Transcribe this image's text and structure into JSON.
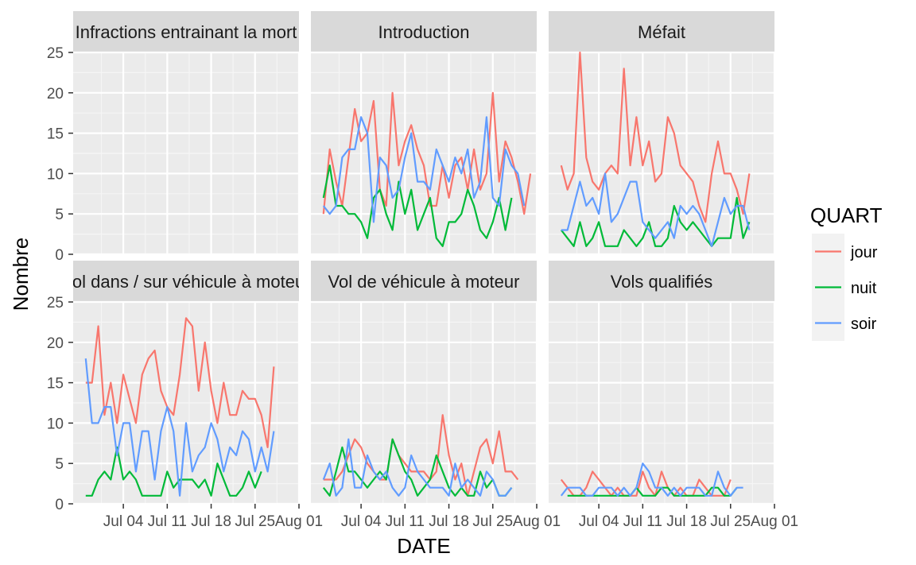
{
  "chart_data": {
    "type": "line",
    "facet_layout": "3 columns x 2 rows, shared axes",
    "xlabel": "DATE",
    "ylabel": "Nombre",
    "x_range": [
      "2017-06-26",
      "2017-08-01"
    ],
    "ylim": [
      0,
      25
    ],
    "x_ticks": [
      {
        "date": "2017-07-04",
        "label": "Jul 04"
      },
      {
        "date": "2017-07-11",
        "label": "Jul 11"
      },
      {
        "date": "2017-07-18",
        "label": "Jul 18"
      },
      {
        "date": "2017-07-25",
        "label": "Jul 25"
      },
      {
        "date": "2017-08-01",
        "label": "Aug 01"
      }
    ],
    "y_ticks": [
      0,
      5,
      10,
      15,
      20,
      25
    ],
    "grid": true,
    "legend": {
      "title": "QUART",
      "placement": "right",
      "entries": [
        {
          "name": "jour",
          "color": "#F8766D"
        },
        {
          "name": "nuit",
          "color": "#00BA38"
        },
        {
          "name": "soir",
          "color": "#619CFF"
        }
      ]
    },
    "panels": [
      {
        "strip": "Infractions entrainant la mort",
        "series": []
      },
      {
        "strip": "Introduction",
        "series": [
          {
            "name": "jour",
            "start": "2017-06-28",
            "values": [
              5,
              13,
              9,
              6,
              12,
              18,
              14,
              15,
              19,
              8,
              6,
              20,
              11,
              14,
              16,
              13,
              11,
              6,
              6,
              11,
              7,
              11,
              12,
              8,
              13,
              8,
              10,
              20,
              9,
              14,
              12,
              9,
              5,
              10
            ]
          },
          {
            "name": "nuit",
            "start": "2017-06-28",
            "values": [
              7,
              11,
              6,
              6,
              5,
              5,
              4,
              2,
              7,
              8,
              5,
              3,
              9,
              5,
              8,
              3,
              5,
              7,
              2,
              1,
              4,
              4,
              5,
              8,
              6,
              3,
              2,
              4,
              7,
              3,
              7
            ]
          },
          {
            "name": "soir",
            "start": "2017-06-28",
            "values": [
              6,
              5,
              6,
              12,
              13,
              13,
              17,
              15,
              4,
              12,
              11,
              7,
              8,
              12,
              15,
              9,
              9,
              8,
              13,
              11,
              9,
              12,
              10,
              13,
              7,
              9,
              17,
              7,
              6,
              13,
              11,
              10,
              6
            ]
          }
        ]
      },
      {
        "strip": "Méfait",
        "series": [
          {
            "name": "jour",
            "start": "2017-06-28",
            "values": [
              11,
              8,
              10,
              25,
              12,
              9,
              8,
              10,
              11,
              10,
              23,
              11,
              17,
              11,
              14,
              9,
              10,
              17,
              15,
              11,
              10,
              9,
              6,
              4,
              10,
              14,
              10,
              10,
              8,
              5,
              10
            ]
          },
          {
            "name": "nuit",
            "start": "2017-06-28",
            "values": [
              3,
              2,
              1,
              4,
              1,
              2,
              4,
              1,
              1,
              1,
              3,
              2,
              1,
              2,
              4,
              1,
              1,
              2,
              6,
              4,
              3,
              4,
              3,
              2,
              1,
              2,
              2,
              2,
              7,
              2,
              4
            ]
          },
          {
            "name": "soir",
            "start": "2017-06-28",
            "values": [
              3,
              3,
              6,
              9,
              6,
              7,
              5,
              10,
              4,
              5,
              7,
              9,
              9,
              4,
              3,
              2,
              3,
              4,
              2,
              6,
              5,
              6,
              5,
              3,
              1,
              4,
              7,
              5,
              6,
              6,
              3
            ]
          }
        ]
      },
      {
        "strip": "Vol dans / sur véhicule à moteur",
        "series": [
          {
            "name": "jour",
            "start": "2017-06-28",
            "values": [
              15,
              15,
              22,
              11,
              15,
              10,
              16,
              13,
              10,
              16,
              18,
              19,
              14,
              12,
              11,
              16,
              23,
              22,
              14,
              20,
              14,
              10,
              15,
              11,
              11,
              14,
              13,
              13,
              11,
              7,
              17
            ]
          },
          {
            "name": "nuit",
            "start": "2017-06-28",
            "values": [
              1,
              1,
              3,
              4,
              3,
              7,
              3,
              4,
              3,
              1,
              1,
              1,
              1,
              4,
              2,
              3,
              3,
              3,
              2,
              3,
              1,
              5,
              3,
              1,
              1,
              2,
              4,
              2,
              4
            ]
          },
          {
            "name": "soir",
            "start": "2017-06-28",
            "values": [
              18,
              10,
              10,
              12,
              12,
              6,
              10,
              10,
              4,
              9,
              9,
              3,
              9,
              12,
              9,
              1,
              10,
              4,
              6,
              7,
              10,
              8,
              4,
              7,
              6,
              9,
              8,
              4,
              7,
              4,
              9
            ]
          }
        ]
      },
      {
        "strip": "Vol de véhicule à moteur",
        "series": [
          {
            "name": "jour",
            "start": "2017-06-28",
            "values": [
              3,
              3,
              3,
              4,
              6,
              8,
              7,
              5,
              4,
              3,
              3,
              8,
              6,
              5,
              4,
              4,
              4,
              3,
              4,
              11,
              6,
              3,
              5,
              1,
              4,
              7,
              8,
              5,
              9,
              4,
              4,
              3
            ]
          },
          {
            "name": "nuit",
            "start": "2017-06-28",
            "values": [
              2,
              1,
              4,
              7,
              4,
              4,
              3,
              2,
              3,
              4,
              3,
              8,
              6,
              4,
              3,
              1,
              2,
              3,
              6,
              4,
              2,
              1,
              2,
              1,
              1,
              4,
              2,
              3,
              1,
              1,
              2
            ]
          },
          {
            "name": "soir",
            "start": "2017-06-28",
            "values": [
              3,
              5,
              1,
              2,
              8,
              2,
              2,
              6,
              4,
              3,
              4,
              2,
              1,
              2,
              6,
              4,
              3,
              2,
              2,
              2,
              1,
              5,
              2,
              3,
              2,
              1,
              4,
              3,
              1,
              1,
              2
            ]
          }
        ]
      },
      {
        "strip": "Vols qualifiés",
        "series": [
          {
            "name": "jour",
            "start": "2017-06-28",
            "values": [
              3,
              2,
              1,
              1,
              2,
              4,
              3,
              2,
              1,
              2,
              1,
              1,
              1,
              4,
              2,
              1,
              4,
              2,
              1,
              2,
              1,
              1,
              3,
              2,
              1,
              1,
              1,
              3
            ]
          },
          {
            "name": "nuit",
            "start": "2017-06-29",
            "values": [
              1,
              1,
              1,
              1,
              1,
              1,
              1,
              1,
              1,
              1,
              1,
              2,
              1,
              1,
              1,
              2,
              2,
              1,
              1,
              1,
              1,
              1,
              1,
              2,
              2,
              1,
              1,
              2
            ]
          },
          {
            "name": "soir",
            "start": "2017-06-28",
            "values": [
              1,
              2,
              2,
              2,
              1,
              1,
              2,
              2,
              2,
              1,
              2,
              1,
              2,
              5,
              4,
              2,
              2,
              1,
              2,
              1,
              2,
              2,
              2,
              1,
              1,
              4,
              2,
              1,
              2,
              2
            ]
          }
        ]
      }
    ]
  }
}
